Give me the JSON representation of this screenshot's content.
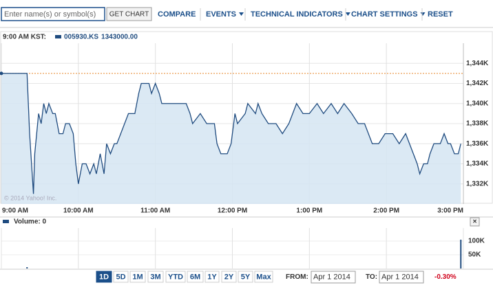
{
  "toolbar": {
    "search_placeholder": "Enter name(s) or symbol(s)",
    "get_chart": "GET CHART",
    "links": [
      "COMPARE",
      "EVENTS",
      "TECHNICAL INDICATORS",
      "CHART SETTINGS",
      "RESET"
    ]
  },
  "chart_data": {
    "type": "line",
    "time_label": "9:00 AM KST:",
    "legend_value": "1343000.00",
    "series": [
      {
        "name": "005930.KS",
        "color": "#1f4b7f",
        "fill": "#d5e5f2",
        "values": [
          1343000,
          1343000,
          1337000,
          1331000,
          1335000,
          1339000,
          1338000,
          1340000,
          1339000,
          1340000,
          1339000,
          1339000,
          1337000,
          1337000,
          1338000,
          1338000,
          1337000,
          1334000,
          1332000,
          1334000,
          1334000,
          1333000,
          1334000,
          1333000,
          1335000,
          1333000,
          1336000,
          1335000,
          1336000,
          1336000,
          1337000,
          1338000,
          1339000,
          1339000,
          1339000,
          1341000,
          1342000,
          1342000,
          1342000,
          1341000,
          1342000,
          1341000,
          1340000,
          1340000,
          1340000,
          1340000,
          1340000,
          1339000,
          1338000,
          1339000,
          1338000,
          1338000,
          1336000,
          1335000,
          1335000,
          1336000,
          1339000,
          1338000,
          1339000,
          1340000,
          1339000,
          1340000,
          1339000,
          1338000,
          1338000,
          1337000,
          1338000,
          1339000,
          1340000,
          1339000,
          1339000,
          1340000,
          1339000,
          1340000,
          1339000,
          1340000,
          1339000,
          1338000,
          1338000,
          1336000,
          1336000,
          1337000,
          1337000,
          1336000,
          1337000,
          1336000,
          1335000,
          1334000,
          1333000,
          1334000,
          1334000,
          1335000,
          1336000,
          1336000,
          1337000,
          1336000,
          1336000,
          1335000,
          1335000,
          1336000
        ]
      }
    ],
    "x": [
      0,
      20,
      22,
      25,
      26,
      29,
      31,
      33,
      35,
      37,
      40,
      42,
      45,
      48,
      50,
      53,
      56,
      58,
      60,
      63,
      66,
      69,
      72,
      74,
      77,
      80,
      82,
      85,
      88,
      90,
      93,
      96,
      99,
      101,
      104,
      107,
      109,
      112,
      115,
      117,
      120,
      123,
      125,
      128,
      133,
      139,
      144,
      147,
      149,
      155,
      160,
      166,
      168,
      171,
      176,
      179,
      182,
      184,
      190,
      192,
      198,
      200,
      203,
      208,
      214,
      219,
      224,
      227,
      230,
      235,
      240,
      246,
      251,
      257,
      262,
      267,
      273,
      278,
      283,
      289,
      294,
      299,
      305,
      310,
      315,
      318,
      321,
      324,
      326,
      329,
      332,
      334,
      337,
      342,
      345,
      348,
      350,
      353,
      356,
      358
    ],
    "reference_line": {
      "value": 1343000,
      "color": "#e8862a"
    },
    "xlim": [
      0,
      360
    ],
    "xticks": [
      {
        "value": 0,
        "label": "9:00 AM"
      },
      {
        "value": 60,
        "label": "10:00 AM"
      },
      {
        "value": 120,
        "label": "11:00 AM"
      },
      {
        "value": 180,
        "label": "12:00 PM"
      },
      {
        "value": 240,
        "label": "1:00 PM"
      },
      {
        "value": 300,
        "label": "2:00 PM"
      },
      {
        "value": 360,
        "label": "3:00 PM"
      }
    ],
    "ylim": [
      1330000,
      1346000
    ],
    "yticks": [
      {
        "value": 1332000,
        "label": "1,332K"
      },
      {
        "value": 1334000,
        "label": "1,334K"
      },
      {
        "value": 1336000,
        "label": "1,336K"
      },
      {
        "value": 1338000,
        "label": "1,338K"
      },
      {
        "value": 1340000,
        "label": "1,340K"
      },
      {
        "value": 1342000,
        "label": "1,342K"
      },
      {
        "value": 1344000,
        "label": "1,344K"
      }
    ],
    "grid": true,
    "watermark": "© 2014 Yahoo! Inc."
  },
  "volume": {
    "type": "bar",
    "title": "Volume: 0",
    "close": "×",
    "color": "#1f4b7f",
    "x": [
      20,
      358
    ],
    "values": [
      5000,
      105000
    ],
    "ylim": [
      0,
      147500
    ],
    "yticks": [
      {
        "value": 50000,
        "label": "50K"
      },
      {
        "value": 100000,
        "label": "100K"
      }
    ]
  },
  "range_buttons": [
    "1D",
    "5D",
    "1M",
    "3M",
    "YTD",
    "6M",
    "1Y",
    "2Y",
    "5Y",
    "Max"
  ],
  "date_range": {
    "from_label": "FROM:",
    "from": "Apr 1 2014",
    "to_label": "TO:",
    "to": "Apr 1 2014",
    "change": "-0.30%"
  }
}
